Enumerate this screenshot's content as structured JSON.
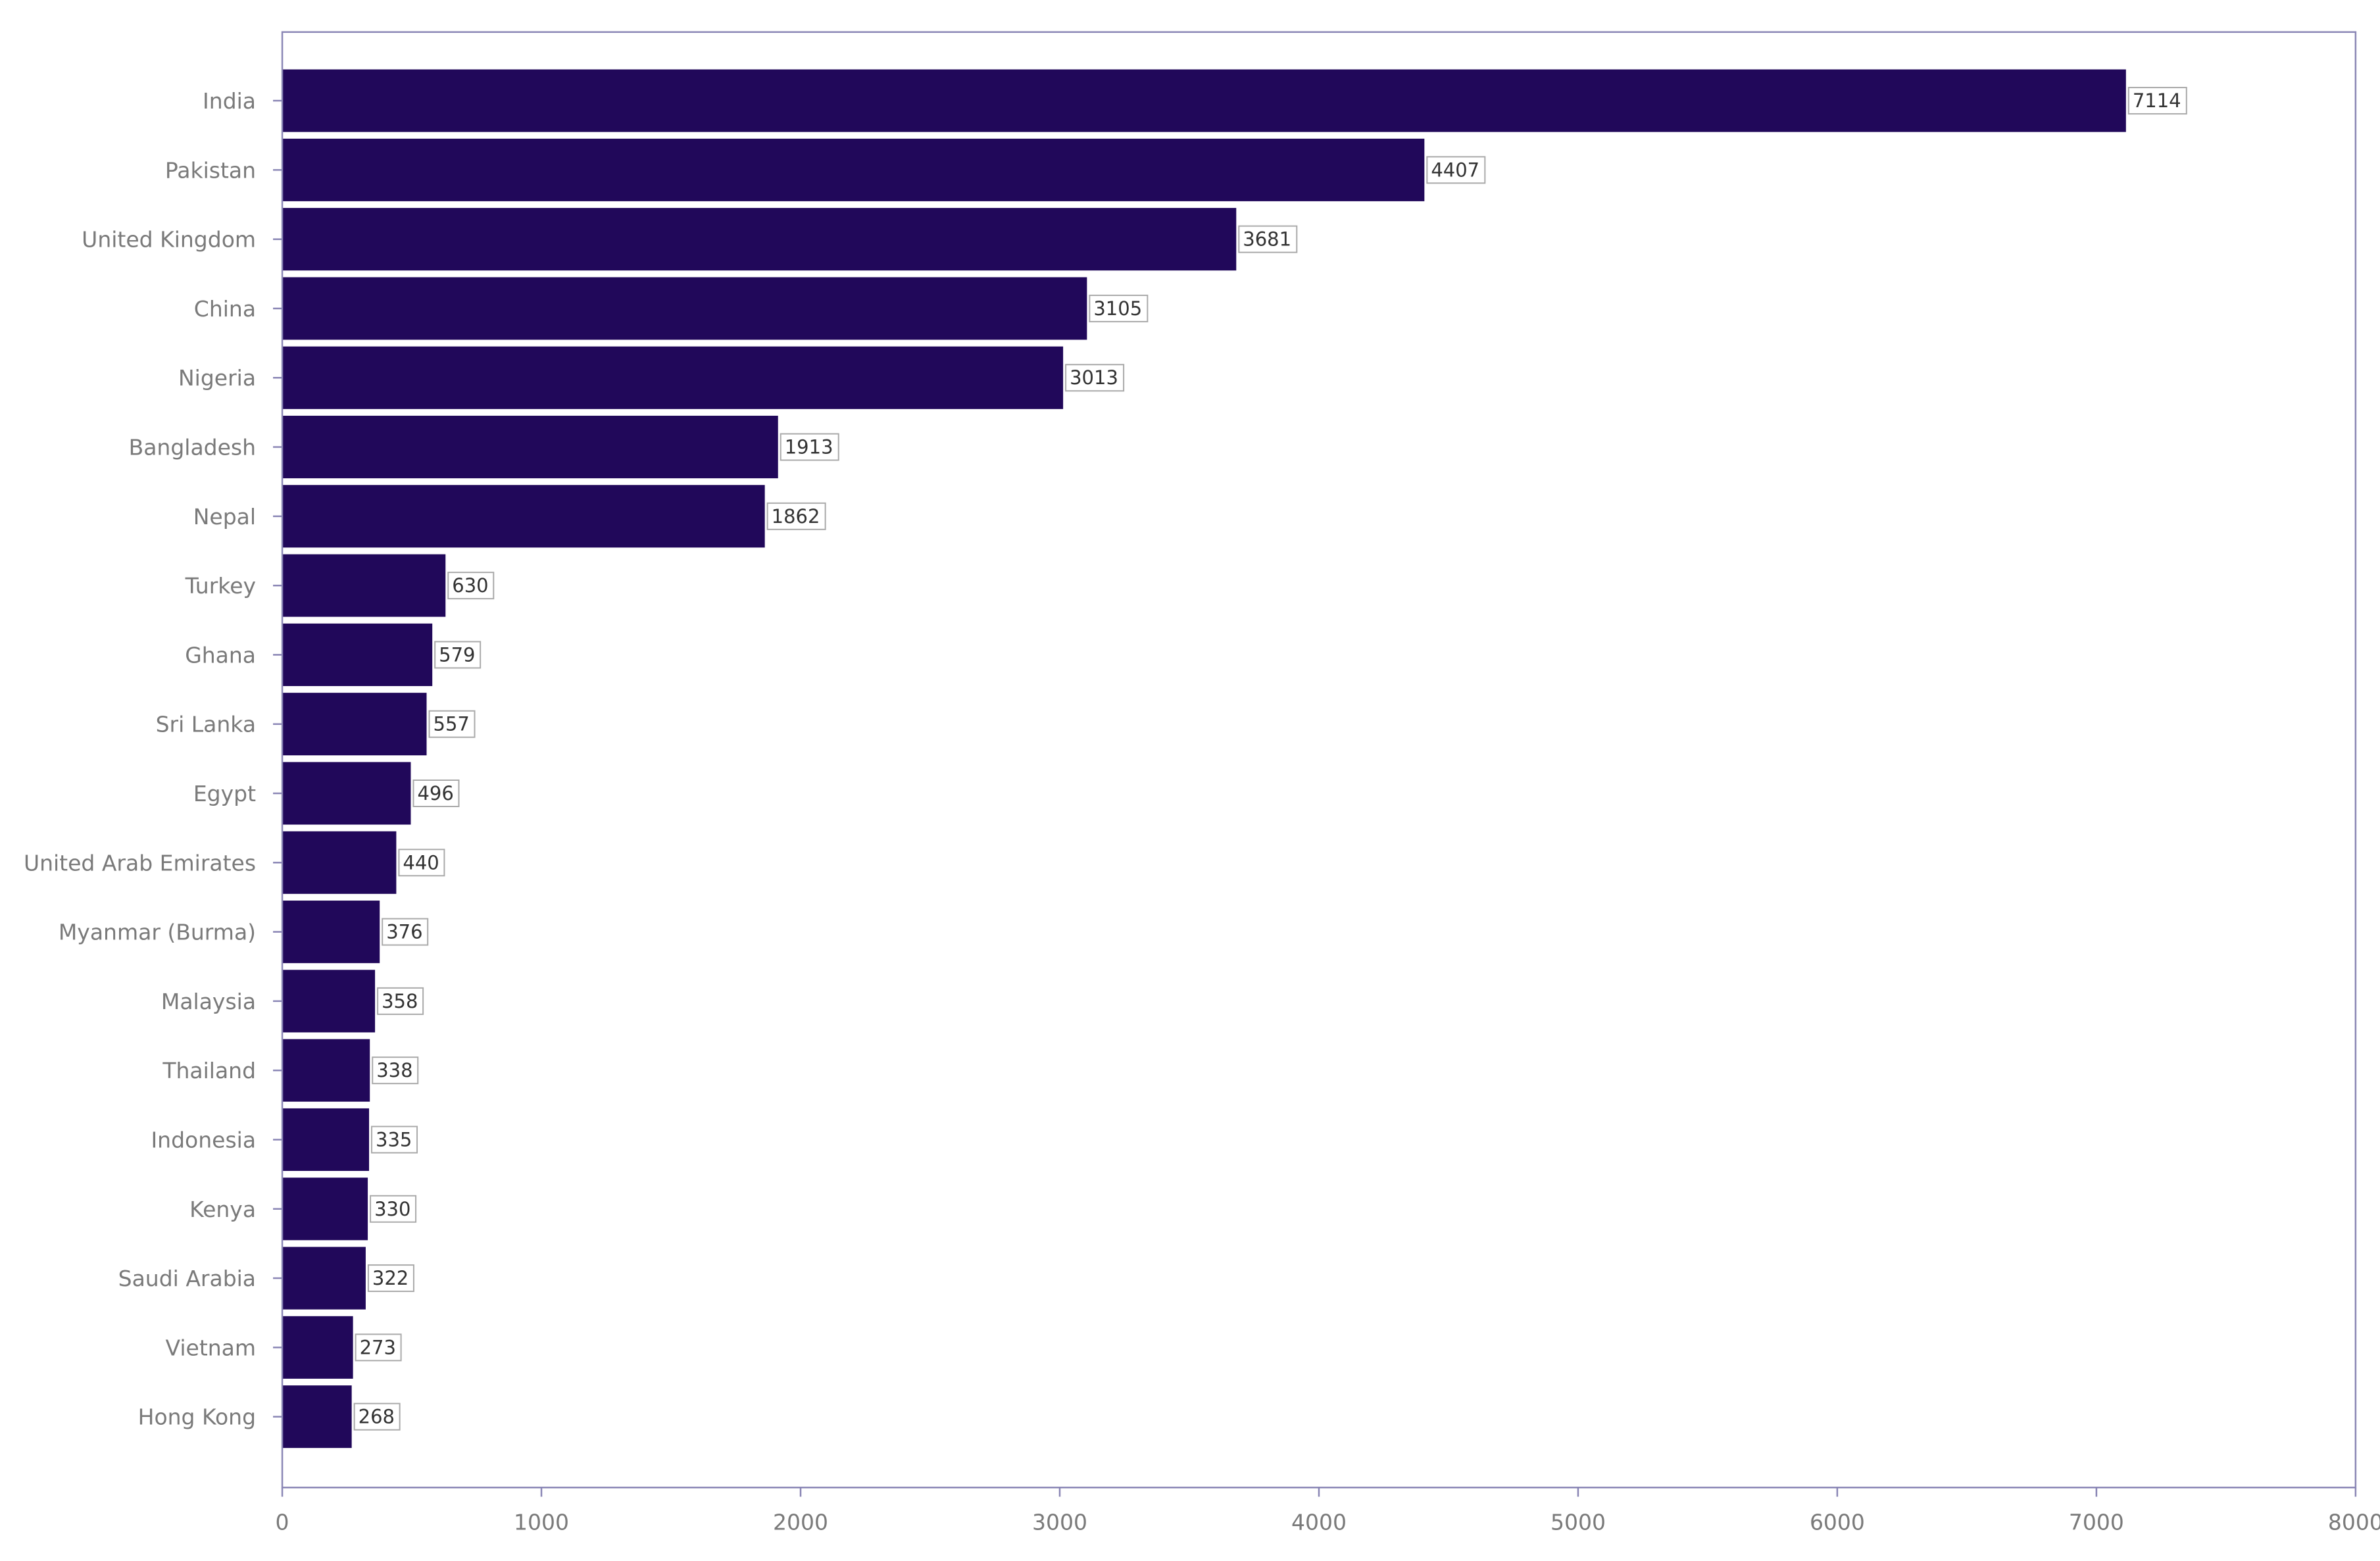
{
  "chart_data": {
    "type": "bar",
    "orientation": "horizontal",
    "categories": [
      "India",
      "Pakistan",
      "United Kingdom",
      "China",
      "Nigeria",
      "Bangladesh",
      "Nepal",
      "Turkey",
      "Ghana",
      "Sri Lanka",
      "Egypt",
      "United Arab Emirates",
      "Myanmar (Burma)",
      "Malaysia",
      "Thailand",
      "Indonesia",
      "Kenya",
      "Saudi Arabia",
      "Vietnam",
      "Hong Kong"
    ],
    "values": [
      7114,
      4407,
      3681,
      3105,
      3013,
      1913,
      1862,
      630,
      579,
      557,
      496,
      440,
      376,
      358,
      338,
      335,
      330,
      322,
      273,
      268
    ],
    "xlim": [
      0,
      8000
    ],
    "xticks": [
      0,
      1000,
      2000,
      3000,
      4000,
      5000,
      6000,
      7000,
      8000
    ],
    "xtick_labels": [
      "0",
      "1000",
      "2000",
      "3000",
      "4000",
      "5000",
      "6000",
      "7000",
      "8000"
    ],
    "title": "",
    "xlabel": "",
    "ylabel": "",
    "grid": false,
    "legend": "none",
    "data_labels": true,
    "colors": {
      "bar": "#21085a",
      "axis": "#8a86b5",
      "label_border": "#aaaaaa",
      "label_text": "#333333",
      "tick_text": "#7a7a7a"
    }
  }
}
